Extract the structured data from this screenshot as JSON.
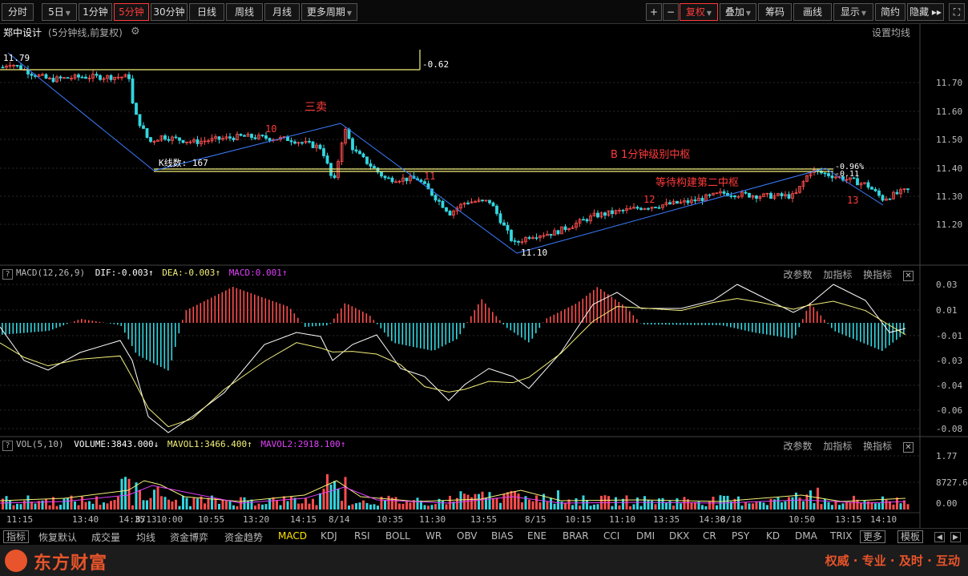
{
  "toolbar": {
    "left": [
      {
        "label": "分时",
        "active": false,
        "caret": false
      },
      {
        "label": "5日",
        "active": false,
        "caret": true
      },
      {
        "label": "1分钟",
        "active": false,
        "caret": false
      },
      {
        "label": "5分钟",
        "active": true,
        "caret": false
      },
      {
        "label": "30分钟",
        "active": false,
        "caret": false
      },
      {
        "label": "日线",
        "active": false,
        "caret": false
      },
      {
        "label": "周线",
        "active": false,
        "caret": false
      },
      {
        "label": "月线",
        "active": false,
        "caret": false
      },
      {
        "label": "更多周期",
        "active": false,
        "caret": true
      }
    ],
    "right": [
      {
        "label": "+",
        "active": false,
        "caret": false
      },
      {
        "label": "−",
        "active": false,
        "caret": false
      },
      {
        "label": "复权",
        "active": true,
        "caret": true
      },
      {
        "label": "叠加",
        "active": false,
        "caret": true
      },
      {
        "label": "筹码",
        "active": false,
        "caret": false
      },
      {
        "label": "画线",
        "active": false,
        "caret": false
      },
      {
        "label": "显示",
        "active": false,
        "caret": true
      },
      {
        "label": "简约",
        "active": false,
        "caret": false
      },
      {
        "label": "隐藏 ▸▸",
        "active": false,
        "caret": false
      }
    ]
  },
  "title": {
    "stock_name": "郑中设计",
    "mode": "(5分钟线,前复权)",
    "ma_setting": "设置均线"
  },
  "price_axis": [
    "11.70",
    "11.60",
    "11.50",
    "11.40",
    "11.30",
    "11.20"
  ],
  "annotations": {
    "high_label": "11.79",
    "range_label": "-0.62",
    "kline_count": "K线数: 167",
    "low_label": "11.10",
    "sell3": "三卖",
    "n10": "10",
    "n11": "11",
    "n12": "12",
    "n13": "13",
    "zs_b": "B  1分钟级别中枢",
    "zs_wait": "等待构建第二中枢",
    "pct_label": "-0.96%",
    "pct_label2": "-0.11"
  },
  "macd": {
    "header": "MACD(12,26,9)",
    "dif": "DIF:-0.003",
    "dea": "DEA:-0.003",
    "macd": "MACD:0.001",
    "axis": [
      "0.03",
      "0.01",
      "-0.01",
      "-0.03",
      "-0.04",
      "-0.06",
      "-0.08"
    ]
  },
  "vol": {
    "header": "VOL(5,10)",
    "volume": "VOLUME:3843.000",
    "mavol1": "MAVOL1:3466.400",
    "mavol2": "MAVOL2:2918.100",
    "axis": [
      "1.77",
      "8727.65",
      "0.00"
    ]
  },
  "sub_tools": [
    "改参数",
    "加指标",
    "换指标"
  ],
  "time_axis": [
    "11:15",
    "13:40",
    "14:35",
    "8/13",
    "10:00",
    "10:55",
    "13:20",
    "14:15",
    "8/14",
    "10:35",
    "11:30",
    "13:55",
    "8/15",
    "10:15",
    "11:10",
    "13:35",
    "14:30",
    "8/18",
    "10:50",
    "13:15",
    "14:10"
  ],
  "tabs": [
    {
      "label": "指标",
      "style": "boxed"
    },
    {
      "label": "恢复默认",
      "style": ""
    },
    {
      "label": "成交量",
      "style": ""
    },
    {
      "label": "均线",
      "style": ""
    },
    {
      "label": "资金博弈",
      "style": ""
    },
    {
      "label": "资金趋势",
      "style": ""
    },
    {
      "label": "MACD",
      "style": "active"
    },
    {
      "label": "KDJ",
      "style": ""
    },
    {
      "label": "RSI",
      "style": ""
    },
    {
      "label": "BOLL",
      "style": ""
    },
    {
      "label": "WR",
      "style": ""
    },
    {
      "label": "OBV",
      "style": ""
    },
    {
      "label": "BIAS",
      "style": ""
    },
    {
      "label": "ENE",
      "style": ""
    },
    {
      "label": "BRAR",
      "style": ""
    },
    {
      "label": "CCI",
      "style": ""
    },
    {
      "label": "DMI",
      "style": ""
    },
    {
      "label": "DKX",
      "style": ""
    },
    {
      "label": "CR",
      "style": ""
    },
    {
      "label": "PSY",
      "style": ""
    },
    {
      "label": "KD",
      "style": ""
    },
    {
      "label": "DMA",
      "style": ""
    },
    {
      "label": "TRIX",
      "style": ""
    },
    {
      "label": "更多",
      "style": "boxed"
    },
    {
      "label": "模板",
      "style": "boxed"
    }
  ],
  "footer": {
    "brand": "东方财富",
    "slogan": "权威 · 专业 · 及时 · 互动"
  },
  "colors": {
    "up": "#ff4d4d",
    "down": "#33d6e0",
    "zs_line": "#f3f07a",
    "trend": "#3b7dff",
    "accent": "#e8542b"
  }
}
